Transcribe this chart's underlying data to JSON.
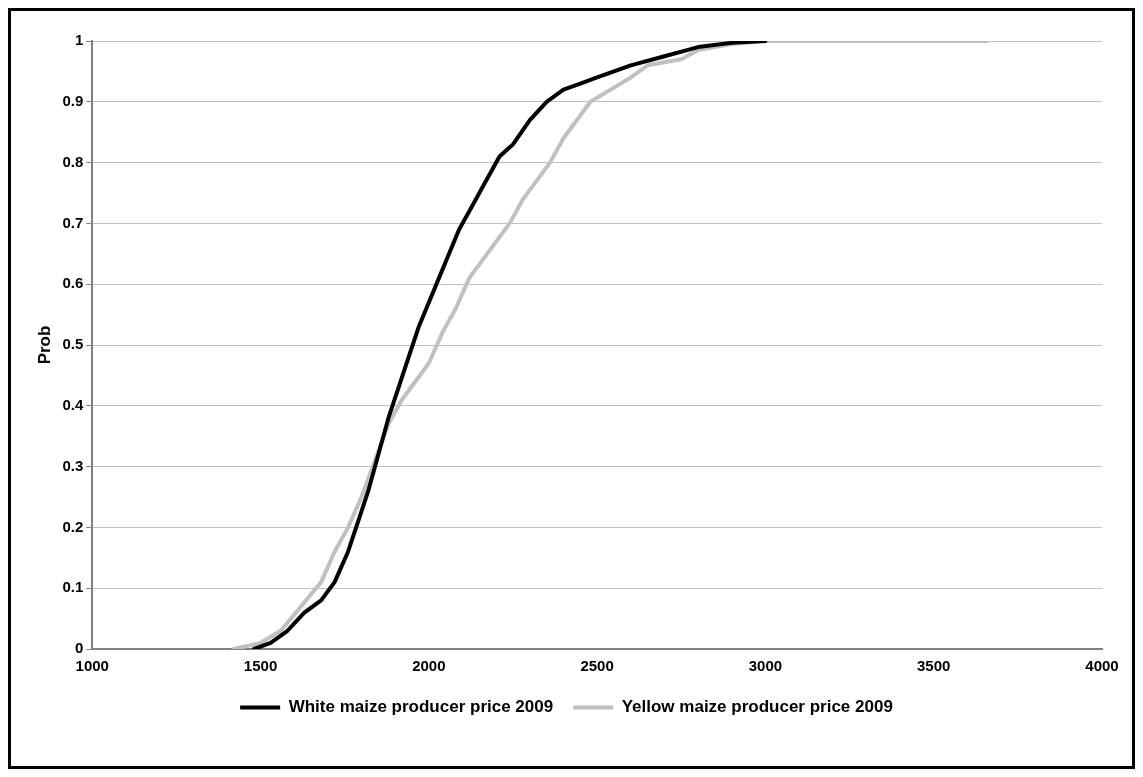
{
  "chart_data": {
    "type": "line",
    "ylabel": "Prob",
    "xlim": [
      1000,
      4000
    ],
    "xticks": [
      1000,
      1500,
      2000,
      2500,
      3000,
      3500,
      4000
    ],
    "ylim": [
      0,
      1
    ],
    "yticks": [
      0,
      0.1,
      0.2,
      0.3,
      0.4,
      0.5,
      0.6,
      0.7,
      0.8,
      0.9,
      1
    ],
    "grid": "y",
    "legend": "bottom",
    "marker": "none",
    "line_style": "solid",
    "series": [
      {
        "name": "White maize producer price 2009",
        "color": "#000000",
        "x": [
          1480,
          1530,
          1580,
          1630,
          1680,
          1720,
          1760,
          1790,
          1820,
          1850,
          1880,
          1910,
          1940,
          1970,
          2000,
          2030,
          2060,
          2090,
          2130,
          2170,
          2210,
          2250,
          2300,
          2350,
          2400,
          2450,
          2500,
          2550,
          2600,
          2700,
          2800,
          2900,
          3000
        ],
        "values": [
          0,
          0.01,
          0.03,
          0.06,
          0.08,
          0.11,
          0.16,
          0.21,
          0.26,
          0.32,
          0.38,
          0.43,
          0.48,
          0.53,
          0.57,
          0.61,
          0.65,
          0.69,
          0.73,
          0.77,
          0.81,
          0.83,
          0.87,
          0.9,
          0.92,
          0.93,
          0.94,
          0.95,
          0.96,
          0.975,
          0.99,
          0.997,
          1
        ]
      },
      {
        "name": "Yellow maize producer price 2009",
        "color": "#c0c0c0",
        "x": [
          1420,
          1500,
          1560,
          1620,
          1680,
          1720,
          1760,
          1800,
          1840,
          1880,
          1920,
          1960,
          2000,
          2040,
          2080,
          2120,
          2160,
          2200,
          2240,
          2280,
          2320,
          2360,
          2400,
          2440,
          2480,
          2540,
          2600,
          2650,
          2700,
          2750,
          2800,
          2900,
          3000,
          3660
        ],
        "values": [
          0,
          0.01,
          0.03,
          0.07,
          0.11,
          0.16,
          0.2,
          0.25,
          0.31,
          0.37,
          0.41,
          0.44,
          0.47,
          0.52,
          0.56,
          0.61,
          0.64,
          0.67,
          0.7,
          0.74,
          0.77,
          0.8,
          0.84,
          0.87,
          0.9,
          0.92,
          0.94,
          0.96,
          0.965,
          0.97,
          0.985,
          0.995,
          1,
          1
        ]
      }
    ]
  }
}
